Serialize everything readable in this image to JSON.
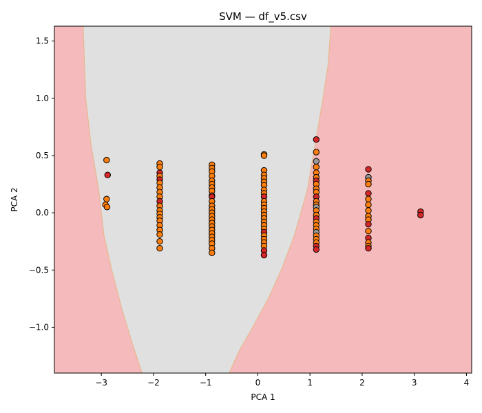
{
  "chart_data": {
    "type": "scatter",
    "title": "SVM — df_v5.csv",
    "xlabel": "PCA 1",
    "ylabel": "PCA 2",
    "xlim": [
      -3.9,
      4.1
    ],
    "ylim": [
      -1.4,
      1.63
    ],
    "x_ticks": [
      -3,
      -2,
      -1,
      0,
      1,
      2,
      3,
      4
    ],
    "y_ticks": [
      -1.0,
      -0.5,
      0.0,
      0.5,
      1.0,
      1.5
    ],
    "x_tick_labels": [
      "−3",
      "−2",
      "−1",
      "0",
      "1",
      "2",
      "3",
      "4"
    ],
    "y_tick_labels": [
      "−1.0",
      "−0.5",
      "0.0",
      "0.5",
      "1.0",
      "1.5"
    ],
    "grid": false,
    "colors": {
      "background_region": "#f5babb",
      "center_region": "#e0e0e0",
      "boundary": "#e8b890",
      "orange": "#ff7f0e",
      "red": "#d62728",
      "gray": "#9a9a9a",
      "edge": "#000000"
    },
    "decision_region": {
      "left_boundary": [
        [
          -3.35,
          1.63
        ],
        [
          -3.3,
          1.0
        ],
        [
          -3.2,
          0.6
        ],
        [
          -3.05,
          0.2
        ],
        [
          -2.95,
          -0.2
        ],
        [
          -2.8,
          -0.5
        ],
        [
          -2.6,
          -0.85
        ],
        [
          -2.4,
          -1.15
        ],
        [
          -2.22,
          -1.4
        ]
      ],
      "right_boundary": [
        [
          -0.55,
          -1.4
        ],
        [
          -0.35,
          -1.2
        ],
        [
          -0.1,
          -1.0
        ],
        [
          0.2,
          -0.75
        ],
        [
          0.45,
          -0.5
        ],
        [
          0.7,
          -0.2
        ],
        [
          0.95,
          0.2
        ],
        [
          1.1,
          0.6
        ],
        [
          1.25,
          1.0
        ],
        [
          1.35,
          1.3
        ],
        [
          1.4,
          1.63
        ]
      ]
    },
    "points": [
      {
        "x": -2.9,
        "y": 0.46,
        "c": "orange"
      },
      {
        "x": -2.88,
        "y": 0.33,
        "c": "red"
      },
      {
        "x": -2.9,
        "y": 0.12,
        "c": "orange"
      },
      {
        "x": -2.92,
        "y": 0.07,
        "c": "orange"
      },
      {
        "x": -2.89,
        "y": 0.05,
        "c": "orange"
      },
      {
        "x": -1.88,
        "y": 0.43,
        "c": "orange"
      },
      {
        "x": -1.88,
        "y": 0.4,
        "c": "orange"
      },
      {
        "x": -1.88,
        "y": 0.35,
        "c": "red"
      },
      {
        "x": -1.88,
        "y": 0.32,
        "c": "orange"
      },
      {
        "x": -1.88,
        "y": 0.29,
        "c": "red"
      },
      {
        "x": -1.88,
        "y": 0.26,
        "c": "orange"
      },
      {
        "x": -1.88,
        "y": 0.22,
        "c": "orange"
      },
      {
        "x": -1.88,
        "y": 0.18,
        "c": "orange"
      },
      {
        "x": -1.88,
        "y": 0.14,
        "c": "orange"
      },
      {
        "x": -1.88,
        "y": 0.1,
        "c": "red"
      },
      {
        "x": -1.88,
        "y": 0.06,
        "c": "orange"
      },
      {
        "x": -1.88,
        "y": 0.02,
        "c": "orange"
      },
      {
        "x": -1.88,
        "y": -0.01,
        "c": "orange"
      },
      {
        "x": -1.88,
        "y": -0.04,
        "c": "orange"
      },
      {
        "x": -1.88,
        "y": -0.07,
        "c": "orange"
      },
      {
        "x": -1.88,
        "y": -0.11,
        "c": "orange"
      },
      {
        "x": -1.88,
        "y": -0.15,
        "c": "orange"
      },
      {
        "x": -1.88,
        "y": -0.19,
        "c": "orange"
      },
      {
        "x": -1.88,
        "y": -0.25,
        "c": "orange"
      },
      {
        "x": -1.88,
        "y": -0.31,
        "c": "orange"
      },
      {
        "x": -0.88,
        "y": 0.42,
        "c": "orange"
      },
      {
        "x": -0.88,
        "y": 0.39,
        "c": "orange"
      },
      {
        "x": -0.88,
        "y": 0.36,
        "c": "orange"
      },
      {
        "x": -0.88,
        "y": 0.32,
        "c": "orange"
      },
      {
        "x": -0.88,
        "y": 0.28,
        "c": "orange"
      },
      {
        "x": -0.88,
        "y": 0.25,
        "c": "orange"
      },
      {
        "x": -0.88,
        "y": 0.22,
        "c": "orange"
      },
      {
        "x": -0.88,
        "y": 0.19,
        "c": "orange"
      },
      {
        "x": -0.88,
        "y": 0.15,
        "c": "orange"
      },
      {
        "x": -0.88,
        "y": 0.14,
        "c": "red"
      },
      {
        "x": -0.88,
        "y": 0.1,
        "c": "orange"
      },
      {
        "x": -0.88,
        "y": 0.06,
        "c": "orange"
      },
      {
        "x": -0.88,
        "y": 0.03,
        "c": "orange"
      },
      {
        "x": -0.88,
        "y": 0.0,
        "c": "orange"
      },
      {
        "x": -0.88,
        "y": -0.03,
        "c": "orange"
      },
      {
        "x": -0.88,
        "y": -0.06,
        "c": "orange"
      },
      {
        "x": -0.88,
        "y": -0.09,
        "c": "orange"
      },
      {
        "x": -0.88,
        "y": -0.12,
        "c": "orange"
      },
      {
        "x": -0.88,
        "y": -0.15,
        "c": "orange"
      },
      {
        "x": -0.88,
        "y": -0.18,
        "c": "orange"
      },
      {
        "x": -0.88,
        "y": -0.21,
        "c": "orange"
      },
      {
        "x": -0.88,
        "y": -0.24,
        "c": "orange"
      },
      {
        "x": -0.88,
        "y": -0.27,
        "c": "orange"
      },
      {
        "x": -0.88,
        "y": -0.31,
        "c": "orange"
      },
      {
        "x": -0.88,
        "y": -0.35,
        "c": "orange"
      },
      {
        "x": 0.12,
        "y": 0.51,
        "c": "orange"
      },
      {
        "x": 0.12,
        "y": 0.5,
        "c": "orange"
      },
      {
        "x": 0.12,
        "y": 0.37,
        "c": "orange"
      },
      {
        "x": 0.12,
        "y": 0.33,
        "c": "orange"
      },
      {
        "x": 0.12,
        "y": 0.3,
        "c": "orange"
      },
      {
        "x": 0.12,
        "y": 0.27,
        "c": "orange"
      },
      {
        "x": 0.12,
        "y": 0.24,
        "c": "orange"
      },
      {
        "x": 0.12,
        "y": 0.2,
        "c": "orange"
      },
      {
        "x": 0.12,
        "y": 0.17,
        "c": "orange"
      },
      {
        "x": 0.12,
        "y": 0.14,
        "c": "red"
      },
      {
        "x": 0.12,
        "y": 0.1,
        "c": "orange"
      },
      {
        "x": 0.12,
        "y": 0.07,
        "c": "orange"
      },
      {
        "x": 0.12,
        "y": 0.04,
        "c": "orange"
      },
      {
        "x": 0.12,
        "y": 0.01,
        "c": "orange"
      },
      {
        "x": 0.12,
        "y": -0.02,
        "c": "orange"
      },
      {
        "x": 0.12,
        "y": -0.05,
        "c": "orange"
      },
      {
        "x": 0.12,
        "y": -0.08,
        "c": "orange"
      },
      {
        "x": 0.12,
        "y": -0.11,
        "c": "orange"
      },
      {
        "x": 0.12,
        "y": -0.14,
        "c": "orange"
      },
      {
        "x": 0.12,
        "y": -0.17,
        "c": "red"
      },
      {
        "x": 0.12,
        "y": -0.2,
        "c": "orange"
      },
      {
        "x": 0.12,
        "y": -0.23,
        "c": "orange"
      },
      {
        "x": 0.12,
        "y": -0.26,
        "c": "orange"
      },
      {
        "x": 0.12,
        "y": -0.29,
        "c": "orange"
      },
      {
        "x": 0.12,
        "y": -0.33,
        "c": "red"
      },
      {
        "x": 0.12,
        "y": -0.37,
        "c": "red"
      },
      {
        "x": 1.12,
        "y": 0.64,
        "c": "red"
      },
      {
        "x": 1.12,
        "y": 0.53,
        "c": "orange"
      },
      {
        "x": 1.12,
        "y": 0.45,
        "c": "gray"
      },
      {
        "x": 1.12,
        "y": 0.4,
        "c": "orange"
      },
      {
        "x": 1.12,
        "y": 0.35,
        "c": "orange"
      },
      {
        "x": 1.12,
        "y": 0.31,
        "c": "orange"
      },
      {
        "x": 1.12,
        "y": 0.28,
        "c": "red"
      },
      {
        "x": 1.12,
        "y": 0.25,
        "c": "orange"
      },
      {
        "x": 1.12,
        "y": 0.21,
        "c": "orange"
      },
      {
        "x": 1.12,
        "y": 0.18,
        "c": "orange"
      },
      {
        "x": 1.12,
        "y": 0.14,
        "c": "red"
      },
      {
        "x": 1.12,
        "y": 0.1,
        "c": "orange"
      },
      {
        "x": 1.12,
        "y": 0.07,
        "c": "orange"
      },
      {
        "x": 1.12,
        "y": 0.05,
        "c": "gray"
      },
      {
        "x": 1.12,
        "y": 0.02,
        "c": "orange"
      },
      {
        "x": 1.12,
        "y": -0.02,
        "c": "orange"
      },
      {
        "x": 1.12,
        "y": -0.05,
        "c": "red"
      },
      {
        "x": 1.12,
        "y": -0.08,
        "c": "orange"
      },
      {
        "x": 1.12,
        "y": -0.11,
        "c": "orange"
      },
      {
        "x": 1.12,
        "y": -0.14,
        "c": "orange"
      },
      {
        "x": 1.12,
        "y": -0.17,
        "c": "gray"
      },
      {
        "x": 1.12,
        "y": -0.2,
        "c": "orange"
      },
      {
        "x": 1.12,
        "y": -0.23,
        "c": "orange"
      },
      {
        "x": 1.12,
        "y": -0.26,
        "c": "orange"
      },
      {
        "x": 1.12,
        "y": -0.29,
        "c": "red"
      },
      {
        "x": 1.12,
        "y": -0.32,
        "c": "red"
      },
      {
        "x": 2.12,
        "y": 0.38,
        "c": "red"
      },
      {
        "x": 2.12,
        "y": 0.31,
        "c": "gray"
      },
      {
        "x": 2.12,
        "y": 0.28,
        "c": "orange"
      },
      {
        "x": 2.12,
        "y": 0.25,
        "c": "orange"
      },
      {
        "x": 2.12,
        "y": 0.17,
        "c": "red"
      },
      {
        "x": 2.12,
        "y": 0.12,
        "c": "orange"
      },
      {
        "x": 2.12,
        "y": 0.07,
        "c": "orange"
      },
      {
        "x": 2.12,
        "y": 0.02,
        "c": "orange"
      },
      {
        "x": 2.12,
        "y": -0.03,
        "c": "orange"
      },
      {
        "x": 2.12,
        "y": -0.06,
        "c": "orange"
      },
      {
        "x": 2.12,
        "y": -0.1,
        "c": "red"
      },
      {
        "x": 2.12,
        "y": -0.16,
        "c": "orange"
      },
      {
        "x": 2.12,
        "y": -0.22,
        "c": "red"
      },
      {
        "x": 2.12,
        "y": -0.26,
        "c": "orange"
      },
      {
        "x": 2.12,
        "y": -0.29,
        "c": "orange"
      },
      {
        "x": 2.12,
        "y": -0.31,
        "c": "red"
      },
      {
        "x": 3.12,
        "y": 0.01,
        "c": "red"
      },
      {
        "x": 3.12,
        "y": -0.02,
        "c": "red"
      }
    ]
  }
}
